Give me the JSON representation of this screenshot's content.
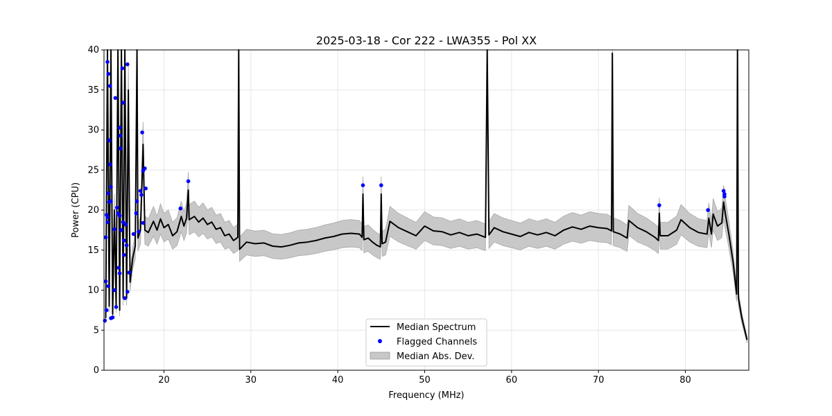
{
  "chart_data": {
    "type": "line",
    "title": "2025-03-18 - Cor 222 - LWA355 - Pol XX",
    "xlabel": "Frequency (MHz)",
    "ylabel": "Power (CPU)",
    "xlim": [
      13.1,
      87.3
    ],
    "ylim": [
      0,
      40
    ],
    "xticks": [
      20,
      30,
      40,
      50,
      60,
      70,
      80
    ],
    "yticks": [
      0,
      5,
      10,
      15,
      20,
      25,
      30,
      35,
      40
    ],
    "grid": true,
    "legend_position": "lower center",
    "legend": [
      {
        "label": "Median Spectrum",
        "color": "#000000",
        "kind": "line"
      },
      {
        "label": "Flagged Channels",
        "color": "#0000ff",
        "kind": "marker"
      },
      {
        "label": "Median Abs. Dev.",
        "color": "#c8c8c8",
        "kind": "patch"
      }
    ],
    "series": [
      {
        "name": "Median Spectrum",
        "color": "#000000",
        "points": [
          [
            13.3,
            6.5
          ],
          [
            13.5,
            40
          ],
          [
            13.7,
            8
          ],
          [
            13.9,
            40
          ],
          [
            14.1,
            7
          ],
          [
            14.3,
            20
          ],
          [
            14.5,
            8
          ],
          [
            14.7,
            40
          ],
          [
            14.9,
            7.5
          ],
          [
            15.1,
            40
          ],
          [
            15.3,
            9
          ],
          [
            15.5,
            40
          ],
          [
            15.7,
            9
          ],
          [
            15.9,
            35
          ],
          [
            16.1,
            11
          ],
          [
            16.4,
            14
          ],
          [
            16.7,
            15.5
          ],
          [
            16.9,
            40
          ],
          [
            17.0,
            16.5
          ],
          [
            17.3,
            17.5
          ],
          [
            17.6,
            28.2
          ],
          [
            17.8,
            17.5
          ],
          [
            18.2,
            17.2
          ],
          [
            18.8,
            18.6
          ],
          [
            19.2,
            17.5
          ],
          [
            19.6,
            18.9
          ],
          [
            20.0,
            17.8
          ],
          [
            20.5,
            18.2
          ],
          [
            21.0,
            16.8
          ],
          [
            21.5,
            17.3
          ],
          [
            22.0,
            19.2
          ],
          [
            22.3,
            18.0
          ],
          [
            22.6,
            19.0
          ],
          [
            22.8,
            22.5
          ],
          [
            22.9,
            18.8
          ],
          [
            23.5,
            19.2
          ],
          [
            24.0,
            18.5
          ],
          [
            24.5,
            19.0
          ],
          [
            25.0,
            18.2
          ],
          [
            25.5,
            18.5
          ],
          [
            26.0,
            17.6
          ],
          [
            26.5,
            17.8
          ],
          [
            27.0,
            16.8
          ],
          [
            27.5,
            17.0
          ],
          [
            28.0,
            16.2
          ],
          [
            28.5,
            16.6
          ],
          [
            28.6,
            40
          ],
          [
            28.7,
            15.1
          ],
          [
            29.5,
            16.0
          ],
          [
            30.5,
            15.8
          ],
          [
            31.5,
            15.9
          ],
          [
            32.5,
            15.5
          ],
          [
            33.5,
            15.4
          ],
          [
            34.5,
            15.6
          ],
          [
            35.5,
            15.9
          ],
          [
            36.5,
            16.0
          ],
          [
            37.5,
            16.2
          ],
          [
            38.5,
            16.5
          ],
          [
            39.5,
            16.7
          ],
          [
            40.5,
            17.0
          ],
          [
            41.5,
            17.1
          ],
          [
            42.5,
            17.0
          ],
          [
            42.8,
            16.6
          ],
          [
            42.9,
            22.0
          ],
          [
            43.0,
            16.3
          ],
          [
            43.5,
            16.5
          ],
          [
            44.0,
            16.0
          ],
          [
            44.5,
            15.6
          ],
          [
            44.9,
            15.4
          ],
          [
            45.0,
            22.0
          ],
          [
            45.1,
            15.8
          ],
          [
            45.5,
            16.0
          ],
          [
            46.0,
            18.6
          ],
          [
            47.0,
            17.8
          ],
          [
            48.0,
            17.3
          ],
          [
            49.0,
            16.8
          ],
          [
            50.0,
            18.0
          ],
          [
            51.0,
            17.4
          ],
          [
            52.0,
            17.3
          ],
          [
            53.0,
            16.9
          ],
          [
            54.0,
            17.2
          ],
          [
            55.0,
            16.8
          ],
          [
            56.0,
            17.0
          ],
          [
            57.0,
            16.6
          ],
          [
            57.2,
            40
          ],
          [
            57.4,
            16.9
          ],
          [
            58.0,
            17.8
          ],
          [
            59.0,
            17.3
          ],
          [
            60.0,
            17.0
          ],
          [
            61.0,
            16.7
          ],
          [
            62.0,
            17.2
          ],
          [
            63.0,
            16.9
          ],
          [
            64.0,
            17.2
          ],
          [
            65.0,
            16.8
          ],
          [
            66.0,
            17.5
          ],
          [
            67.0,
            17.9
          ],
          [
            68.0,
            17.6
          ],
          [
            69.0,
            18.0
          ],
          [
            70.0,
            17.8
          ],
          [
            71.0,
            17.7
          ],
          [
            71.5,
            17.4
          ],
          [
            71.6,
            39.6
          ],
          [
            71.7,
            17.3
          ],
          [
            72.5,
            17.0
          ],
          [
            73.3,
            16.5
          ],
          [
            73.5,
            18.7
          ],
          [
            74.5,
            17.8
          ],
          [
            75.5,
            17.3
          ],
          [
            76.5,
            16.6
          ],
          [
            76.9,
            16.2
          ],
          [
            77.0,
            19.6
          ],
          [
            77.1,
            16.8
          ],
          [
            78.0,
            16.8
          ],
          [
            79.0,
            17.5
          ],
          [
            79.5,
            18.8
          ],
          [
            80.5,
            17.8
          ],
          [
            81.5,
            17.2
          ],
          [
            82.5,
            17.0
          ],
          [
            82.7,
            19.0
          ],
          [
            83.0,
            17.0
          ],
          [
            83.2,
            19.5
          ],
          [
            83.7,
            18.0
          ],
          [
            84.2,
            18.4
          ],
          [
            84.4,
            21.0
          ],
          [
            84.6,
            19.5
          ],
          [
            85.0,
            17.0
          ],
          [
            85.5,
            13.5
          ],
          [
            85.9,
            9.5
          ],
          [
            86.0,
            40
          ],
          [
            86.1,
            9.0
          ],
          [
            86.5,
            6.5
          ],
          [
            87.1,
            3.8
          ]
        ]
      },
      {
        "name": "Flagged Channels",
        "color": "#0000ff",
        "marker": "dot",
        "points": [
          [
            13.2,
            6.2
          ],
          [
            13.3,
            16.6
          ],
          [
            13.3,
            11.1
          ],
          [
            13.4,
            19.4
          ],
          [
            13.4,
            7.5
          ],
          [
            13.5,
            38.5
          ],
          [
            13.5,
            19.1
          ],
          [
            13.5,
            18.5
          ],
          [
            13.6,
            37.0
          ],
          [
            13.6,
            22.1
          ],
          [
            13.6,
            10.5
          ],
          [
            13.7,
            28.7
          ],
          [
            13.7,
            21.0
          ],
          [
            13.8,
            35.5
          ],
          [
            13.8,
            25.7
          ],
          [
            13.9,
            22.9
          ],
          [
            13.9,
            21.1
          ],
          [
            13.9,
            6.5
          ],
          [
            14.1,
            6.6
          ],
          [
            14.3,
            17.6
          ],
          [
            14.3,
            10.0
          ],
          [
            14.4,
            34.0
          ],
          [
            14.5,
            7.9
          ],
          [
            14.6,
            20.3
          ],
          [
            14.7,
            19.6
          ],
          [
            14.8,
            12.8
          ],
          [
            14.9,
            30.3
          ],
          [
            14.9,
            19.3
          ],
          [
            14.9,
            12.1
          ],
          [
            15.0,
            27.7
          ],
          [
            15.0,
            29.3
          ],
          [
            15.1,
            17.5
          ],
          [
            15.2,
            37.7
          ],
          [
            15.3,
            33.4
          ],
          [
            15.3,
            18.5
          ],
          [
            15.4,
            16.2
          ],
          [
            15.4,
            14.4
          ],
          [
            15.5,
            9.0
          ],
          [
            15.6,
            18.2
          ],
          [
            15.7,
            15.6
          ],
          [
            15.8,
            38.2
          ],
          [
            15.8,
            9.8
          ],
          [
            16.0,
            12.2
          ],
          [
            16.5,
            17.0
          ],
          [
            16.8,
            19.6
          ],
          [
            16.9,
            21.1
          ],
          [
            17.1,
            17.3
          ],
          [
            17.3,
            22.4
          ],
          [
            17.4,
            21.9
          ],
          [
            17.5,
            29.7
          ],
          [
            17.6,
            18.4
          ],
          [
            17.6,
            24.9
          ],
          [
            17.8,
            25.2
          ],
          [
            17.9,
            22.7
          ],
          [
            21.9,
            20.2
          ],
          [
            22.8,
            23.6
          ],
          [
            42.9,
            23.1
          ],
          [
            45.0,
            23.1
          ],
          [
            77.0,
            20.6
          ],
          [
            82.6,
            20.0
          ],
          [
            84.4,
            22.4
          ],
          [
            84.5,
            22.0
          ],
          [
            84.5,
            21.7
          ]
        ]
      }
    ]
  }
}
